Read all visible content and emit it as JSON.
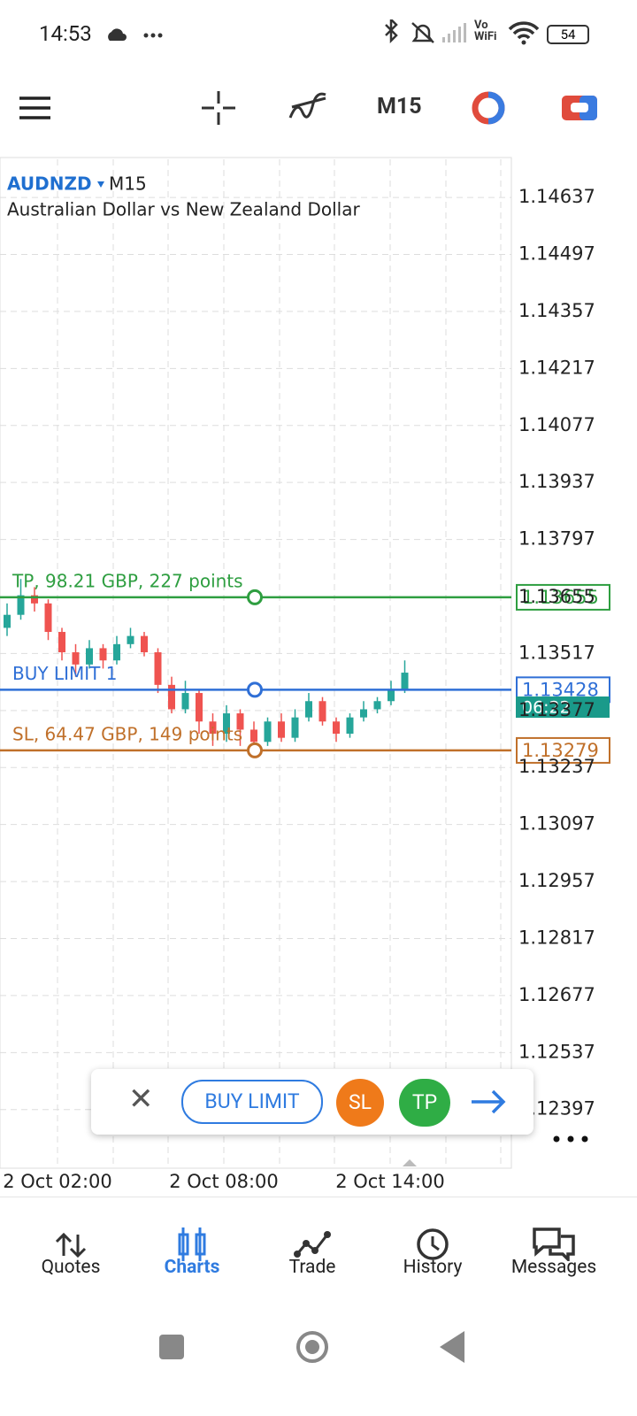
{
  "status_bar": {
    "time": "14:53",
    "vo": "Vo",
    "wifi": "WiFi",
    "battery": 54
  },
  "toolbar": {
    "timeframe": "M15"
  },
  "chart": {
    "symbol": "AUDNZD",
    "timeframe": "M15",
    "description": "Australian Dollar vs New Zealand Dollar",
    "ylim": [
      1.12253,
      1.14735
    ],
    "yticks": [
      1.14637,
      1.14497,
      1.14357,
      1.14217,
      1.14077,
      1.13937,
      1.13797,
      1.13655,
      1.13517,
      1.13377,
      1.13237,
      1.13097,
      1.12957,
      1.12817,
      1.12677,
      1.12537,
      1.12397
    ],
    "x_labels": [
      "2 Oct 02:00",
      "2 Oct 08:00",
      "2 Oct 14:00"
    ],
    "candles": {
      "open": [
        1.1358,
        1.13612,
        1.1366,
        1.1364,
        1.1357,
        1.1352,
        1.1349,
        1.1353,
        1.135,
        1.1354,
        1.1356,
        1.1352,
        1.1344,
        1.1338,
        1.1342,
        1.1335,
        1.1332,
        1.1337,
        1.1333,
        1.133,
        1.1335,
        1.1331,
        1.1336,
        1.134,
        1.1335,
        1.1332,
        1.1336,
        1.1338,
        1.134,
        1.1343
      ],
      "high": [
        1.1364,
        1.137,
        1.1368,
        1.1365,
        1.1358,
        1.1354,
        1.1355,
        1.1354,
        1.1356,
        1.1358,
        1.1357,
        1.1353,
        1.1346,
        1.1345,
        1.1343,
        1.1337,
        1.1339,
        1.1338,
        1.1335,
        1.1336,
        1.1337,
        1.1338,
        1.1342,
        1.1341,
        1.1336,
        1.1337,
        1.134,
        1.1341,
        1.1345,
        1.135
      ],
      "low": [
        1.1356,
        1.136,
        1.1362,
        1.1355,
        1.135,
        1.1346,
        1.1348,
        1.1348,
        1.1349,
        1.1353,
        1.1351,
        1.1342,
        1.1337,
        1.1337,
        1.1332,
        1.1329,
        1.133,
        1.1329,
        1.1328,
        1.1329,
        1.133,
        1.133,
        1.1335,
        1.1334,
        1.133,
        1.1331,
        1.1335,
        1.1337,
        1.1339,
        1.1342
      ],
      "close": [
        1.13612,
        1.1366,
        1.1364,
        1.1357,
        1.1352,
        1.1349,
        1.1353,
        1.135,
        1.1354,
        1.1356,
        1.1352,
        1.1344,
        1.1338,
        1.1342,
        1.1335,
        1.1332,
        1.1337,
        1.1333,
        1.133,
        1.1335,
        1.1331,
        1.1336,
        1.134,
        1.1335,
        1.1332,
        1.1336,
        1.1338,
        1.134,
        1.1343,
        1.1347
      ]
    },
    "levels": [
      {
        "label": "TP, 98.21 GBP, 227 points",
        "price": 1.13655,
        "color": "#2e9e40"
      },
      {
        "label": "BUY LIMIT 1",
        "price": 1.13428,
        "color": "#2f6fd6"
      },
      {
        "label": "SL, 64.47 GBP, 149 points",
        "price": 1.13279,
        "color": "#c0702a"
      }
    ],
    "countdown": "06:22"
  },
  "order_bar": {
    "buy_limit": "BUY LIMIT",
    "sl": "SL",
    "tp": "TP"
  },
  "nav": {
    "tabs": [
      "Quotes",
      "Charts",
      "Trade",
      "History",
      "Messages"
    ]
  }
}
